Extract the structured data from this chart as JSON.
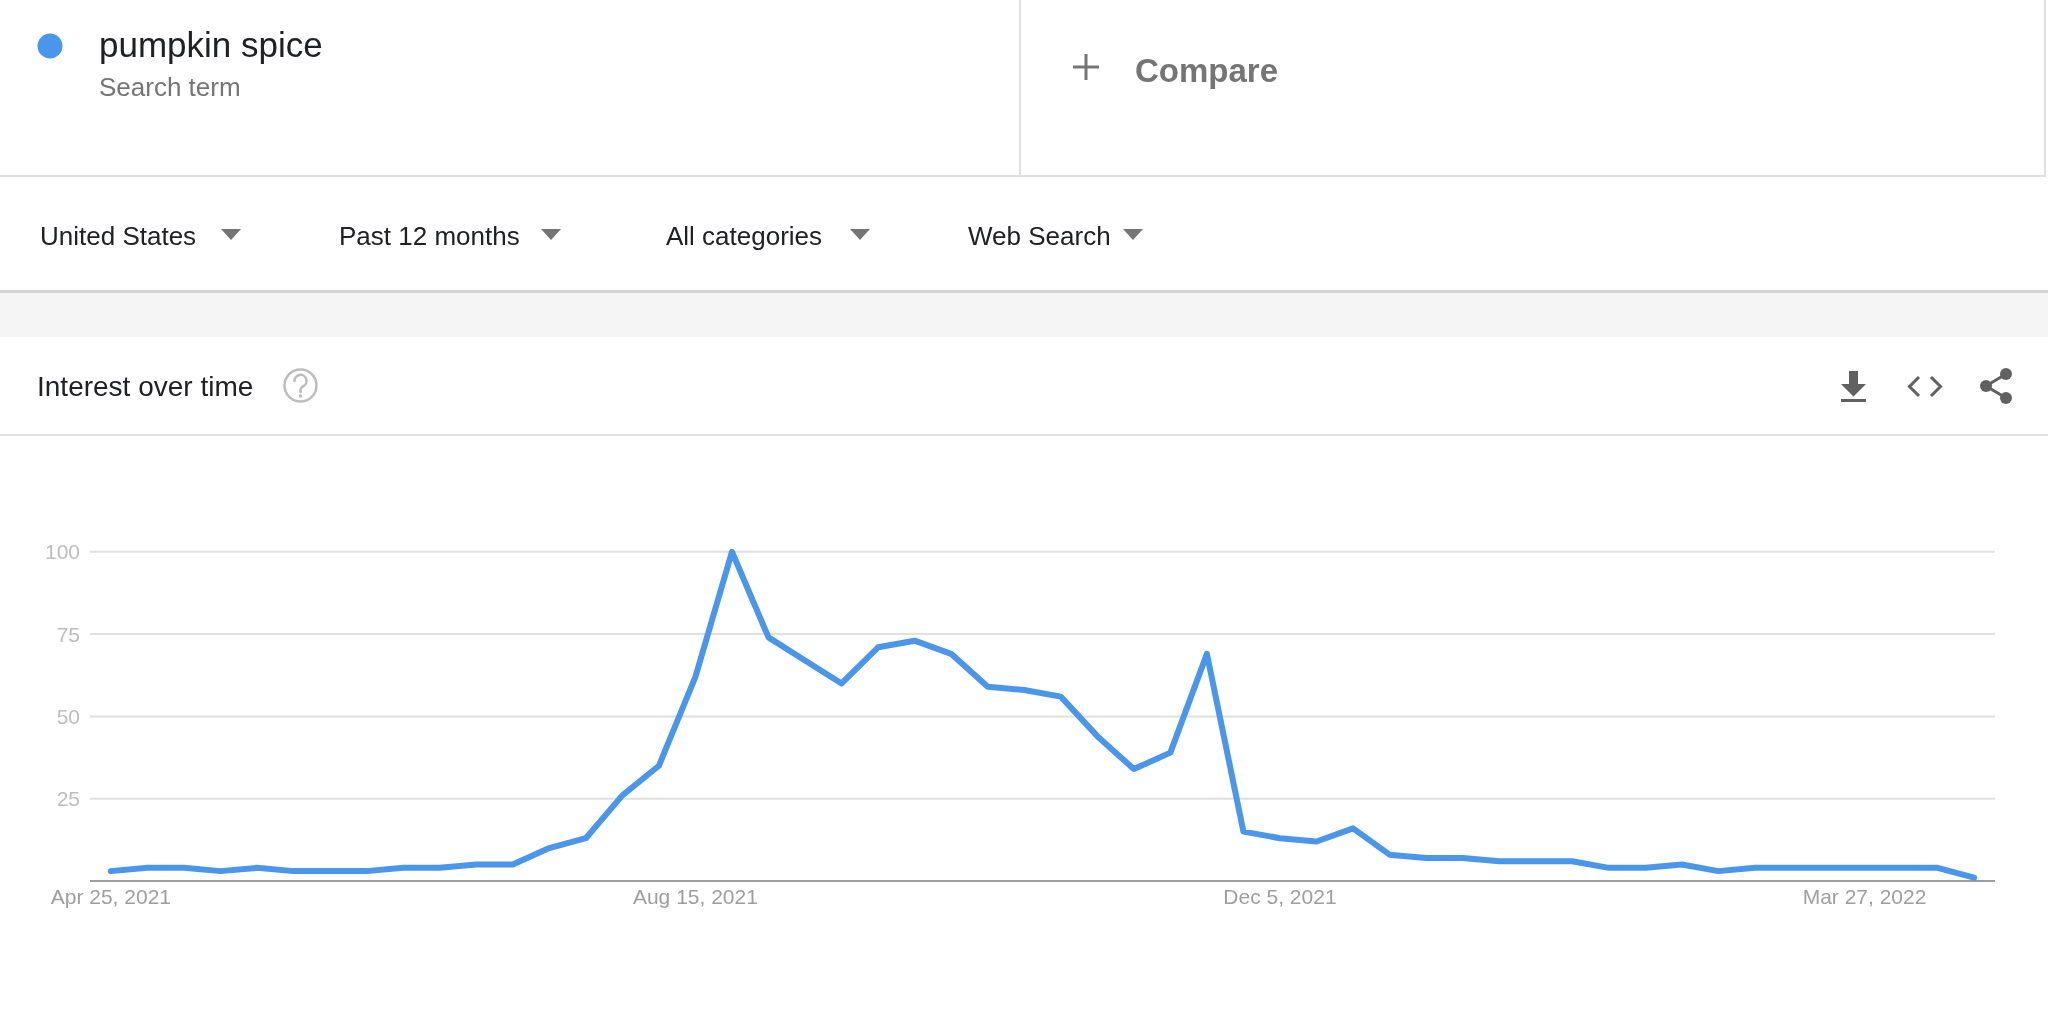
{
  "chart_data": {
    "type": "line",
    "title": "Interest over time",
    "annotations": [
      "Search term",
      "Compare",
      "United States",
      "Past 12 months",
      "All categories",
      "Web Search"
    ],
    "x": [
      "2021-04-25",
      "2021-05-02",
      "2021-05-09",
      "2021-05-16",
      "2021-05-23",
      "2021-05-30",
      "2021-06-06",
      "2021-06-13",
      "2021-06-20",
      "2021-06-27",
      "2021-07-04",
      "2021-07-11",
      "2021-07-18",
      "2021-07-25",
      "2021-08-01",
      "2021-08-08",
      "2021-08-15",
      "2021-08-22",
      "2021-08-29",
      "2021-09-05",
      "2021-09-12",
      "2021-09-19",
      "2021-09-26",
      "2021-10-03",
      "2021-10-10",
      "2021-10-17",
      "2021-10-24",
      "2021-10-31",
      "2021-11-07",
      "2021-11-14",
      "2021-11-21",
      "2021-11-28",
      "2021-12-05",
      "2021-12-12",
      "2021-12-19",
      "2021-12-26",
      "2022-01-02",
      "2022-01-09",
      "2022-01-16",
      "2022-01-23",
      "2022-01-30",
      "2022-02-06",
      "2022-02-13",
      "2022-02-20",
      "2022-02-27",
      "2022-03-06",
      "2022-03-13",
      "2022-03-20",
      "2022-03-27",
      "2022-04-03",
      "2022-04-10",
      "2022-04-17"
    ],
    "series": [
      {
        "name": "pumpkin spice",
        "color": "#4a96ea",
        "values": [
          3,
          4,
          4,
          3,
          4,
          3,
          3,
          3,
          4,
          4,
          5,
          5,
          10,
          13,
          26,
          35,
          62,
          100,
          74,
          67,
          60,
          71,
          73,
          69,
          59,
          58,
          56,
          44,
          34,
          39,
          69,
          15,
          13,
          12,
          16,
          8,
          7,
          7,
          6,
          6,
          6,
          4,
          4,
          5,
          3,
          4,
          4,
          4,
          4,
          4,
          4,
          1
        ]
      }
    ],
    "xlim": [
      "2021-04-21",
      "2022-04-21"
    ],
    "xticks": [
      {
        "value": "2021-04-25",
        "label": "Apr 25, 2021"
      },
      {
        "value": "2021-08-15",
        "label": "Aug 15, 2021"
      },
      {
        "value": "2021-12-05",
        "label": "Dec 5, 2021"
      },
      {
        "value": "2022-03-27",
        "label": "Mar 27, 2022"
      }
    ],
    "ylim": [
      0,
      100
    ],
    "yticks": [
      25,
      50,
      75,
      100
    ],
    "grid": "y",
    "legend": "top left"
  }
}
